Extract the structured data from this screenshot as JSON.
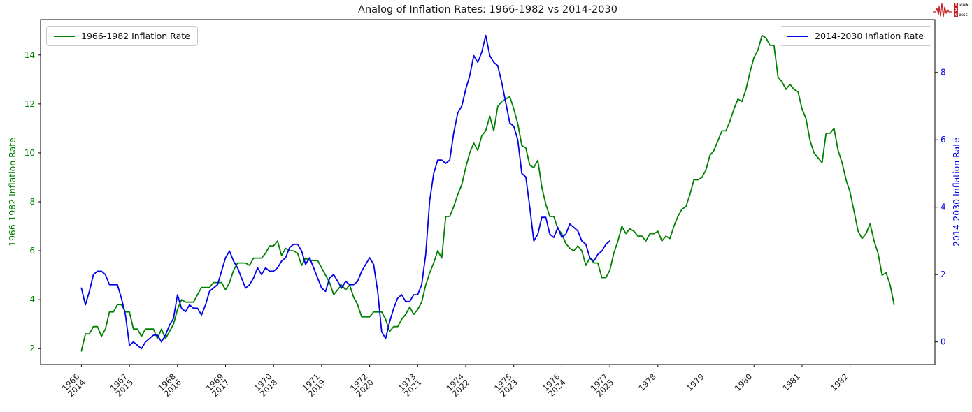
{
  "chart_data": {
    "type": "line",
    "title": "Analog of Inflation Rates: 1966-1982 vs 2014-2030",
    "x_unit": "months",
    "x_axis": {
      "range": [
        -10.2,
        213.2
      ],
      "ticks": [
        {
          "m": 0,
          "l1": "1966",
          "l2": "2014"
        },
        {
          "m": 12,
          "l1": "1967",
          "l2": "2015"
        },
        {
          "m": 24,
          "l1": "1968",
          "l2": "2016"
        },
        {
          "m": 36,
          "l1": "1969",
          "l2": "2017"
        },
        {
          "m": 48,
          "l1": "1970",
          "l2": "2018"
        },
        {
          "m": 60,
          "l1": "1971",
          "l2": "2019"
        },
        {
          "m": 72,
          "l1": "1972",
          "l2": "2020"
        },
        {
          "m": 84,
          "l1": "1973",
          "l2": "2021"
        },
        {
          "m": 96,
          "l1": "1974",
          "l2": "2022"
        },
        {
          "m": 108,
          "l1": "1975",
          "l2": "2023"
        },
        {
          "m": 120,
          "l1": "1976",
          "l2": "2024"
        },
        {
          "m": 132,
          "l1": "1977",
          "l2": "2025"
        },
        {
          "m": 144,
          "l1": "1978",
          "l2": ""
        },
        {
          "m": 156,
          "l1": "1979",
          "l2": ""
        },
        {
          "m": 168,
          "l1": "1980",
          "l2": ""
        },
        {
          "m": 180,
          "l1": "1981",
          "l2": ""
        },
        {
          "m": 192,
          "l1": "1982",
          "l2": ""
        }
      ]
    },
    "left_axis": {
      "label": "1966-1982 Inflation Rate",
      "color": "#008000",
      "ticks": [
        2,
        4,
        6,
        8,
        10,
        12,
        14
      ],
      "range": [
        1.35,
        15.45
      ]
    },
    "right_axis": {
      "label": "2014-2030 Inflation Rate",
      "color": "#0000ee",
      "ticks": [
        0,
        2,
        4,
        6,
        8
      ],
      "range": [
        -0.67,
        9.57
      ]
    },
    "grid": false,
    "series": [
      {
        "id": "1966-1982",
        "name": "1966-1982 Inflation Rate",
        "color": "#008000",
        "axis": "left",
        "start": "1966-01",
        "frequency": "monthly",
        "values": [
          1.9,
          2.6,
          2.6,
          2.9,
          2.9,
          2.5,
          2.8,
          3.5,
          3.5,
          3.8,
          3.8,
          3.5,
          3.5,
          2.8,
          2.8,
          2.5,
          2.8,
          2.8,
          2.8,
          2.4,
          2.8,
          2.4,
          2.7,
          3.0,
          3.6,
          4.0,
          3.9,
          3.9,
          3.9,
          4.2,
          4.5,
          4.5,
          4.5,
          4.7,
          4.7,
          4.7,
          4.4,
          4.7,
          5.2,
          5.5,
          5.5,
          5.5,
          5.4,
          5.7,
          5.7,
          5.7,
          5.9,
          6.2,
          6.2,
          6.4,
          5.8,
          6.1,
          6.0,
          6.0,
          5.9,
          5.4,
          5.7,
          5.6,
          5.6,
          5.6,
          5.3,
          5.0,
          4.7,
          4.2,
          4.4,
          4.6,
          4.4,
          4.6,
          4.1,
          3.8,
          3.3,
          3.3,
          3.3,
          3.5,
          3.5,
          3.5,
          3.2,
          2.7,
          2.9,
          2.9,
          3.2,
          3.4,
          3.7,
          3.4,
          3.6,
          3.9,
          4.6,
          5.1,
          5.5,
          6.0,
          5.7,
          7.4,
          7.4,
          7.8,
          8.3,
          8.7,
          9.4,
          10.0,
          10.4,
          10.1,
          10.7,
          10.9,
          11.5,
          10.9,
          11.9,
          12.1,
          12.2,
          12.3,
          11.8,
          11.2,
          10.3,
          10.2,
          9.5,
          9.4,
          9.7,
          8.6,
          7.9,
          7.4,
          7.4,
          6.9,
          6.7,
          6.3,
          6.1,
          6.0,
          6.2,
          6.0,
          5.4,
          5.7,
          5.5,
          5.5,
          4.9,
          4.9,
          5.2,
          5.9,
          6.4,
          7.0,
          6.7,
          6.9,
          6.8,
          6.6,
          6.6,
          6.4,
          6.7,
          6.7,
          6.8,
          6.4,
          6.6,
          6.5,
          7.0,
          7.4,
          7.7,
          7.8,
          8.3,
          8.9,
          8.9,
          9.0,
          9.3,
          9.9,
          10.1,
          10.5,
          10.9,
          10.9,
          11.3,
          11.8,
          12.2,
          12.1,
          12.6,
          13.3,
          13.9,
          14.2,
          14.8,
          14.7,
          14.4,
          14.4,
          13.1,
          12.9,
          12.6,
          12.8,
          12.6,
          12.5,
          11.8,
          11.4,
          10.5,
          10.0,
          9.8,
          9.6,
          10.8,
          10.8,
          11.0,
          10.1,
          9.6,
          8.9,
          8.4,
          7.6,
          6.8,
          6.5,
          6.7,
          7.1,
          6.4,
          5.9,
          5.0,
          5.1,
          4.6,
          3.8
        ]
      },
      {
        "id": "2014-2030",
        "name": "2014-2030 Inflation Rate",
        "color": "#0000ee",
        "axis": "right",
        "start": "2014-01",
        "frequency": "monthly",
        "values": [
          1.6,
          1.1,
          1.5,
          2.0,
          2.1,
          2.1,
          2.0,
          1.7,
          1.7,
          1.7,
          1.3,
          0.8,
          -0.1,
          0.0,
          -0.1,
          -0.2,
          0.0,
          0.1,
          0.2,
          0.2,
          0.0,
          0.2,
          0.5,
          0.7,
          1.4,
          1.0,
          0.9,
          1.1,
          1.0,
          1.0,
          0.8,
          1.1,
          1.5,
          1.6,
          1.7,
          2.1,
          2.5,
          2.7,
          2.4,
          2.2,
          1.9,
          1.6,
          1.7,
          1.9,
          2.2,
          2.0,
          2.2,
          2.1,
          2.1,
          2.2,
          2.4,
          2.5,
          2.8,
          2.9,
          2.9,
          2.7,
          2.3,
          2.5,
          2.2,
          1.9,
          1.6,
          1.5,
          1.9,
          2.0,
          1.8,
          1.6,
          1.8,
          1.7,
          1.7,
          1.8,
          2.1,
          2.3,
          2.5,
          2.3,
          1.5,
          0.3,
          0.1,
          0.6,
          1.0,
          1.3,
          1.4,
          1.2,
          1.2,
          1.4,
          1.4,
          1.7,
          2.6,
          4.2,
          5.0,
          5.4,
          5.4,
          5.3,
          5.4,
          6.2,
          6.8,
          7.0,
          7.5,
          7.9,
          8.5,
          8.3,
          8.6,
          9.1,
          8.5,
          8.3,
          8.2,
          7.7,
          7.1,
          6.5,
          6.4,
          6.0,
          5.0,
          4.9,
          4.0,
          3.0,
          3.2,
          3.7,
          3.7,
          3.2,
          3.1,
          3.4,
          3.1,
          3.2,
          3.5,
          3.4,
          3.3,
          3.0,
          2.9,
          2.5,
          2.4,
          2.6,
          2.7,
          2.9,
          3.0
        ]
      }
    ],
    "legend_position": {
      "first": "upper left",
      "second": "upper right"
    }
  },
  "logo": {
    "color": "#c42127",
    "lines": [
      {
        "badge": "S",
        "text": "IGNAL"
      },
      {
        "badge": "2",
        "text": ""
      },
      {
        "badge": "N",
        "text": "OISE"
      }
    ]
  }
}
